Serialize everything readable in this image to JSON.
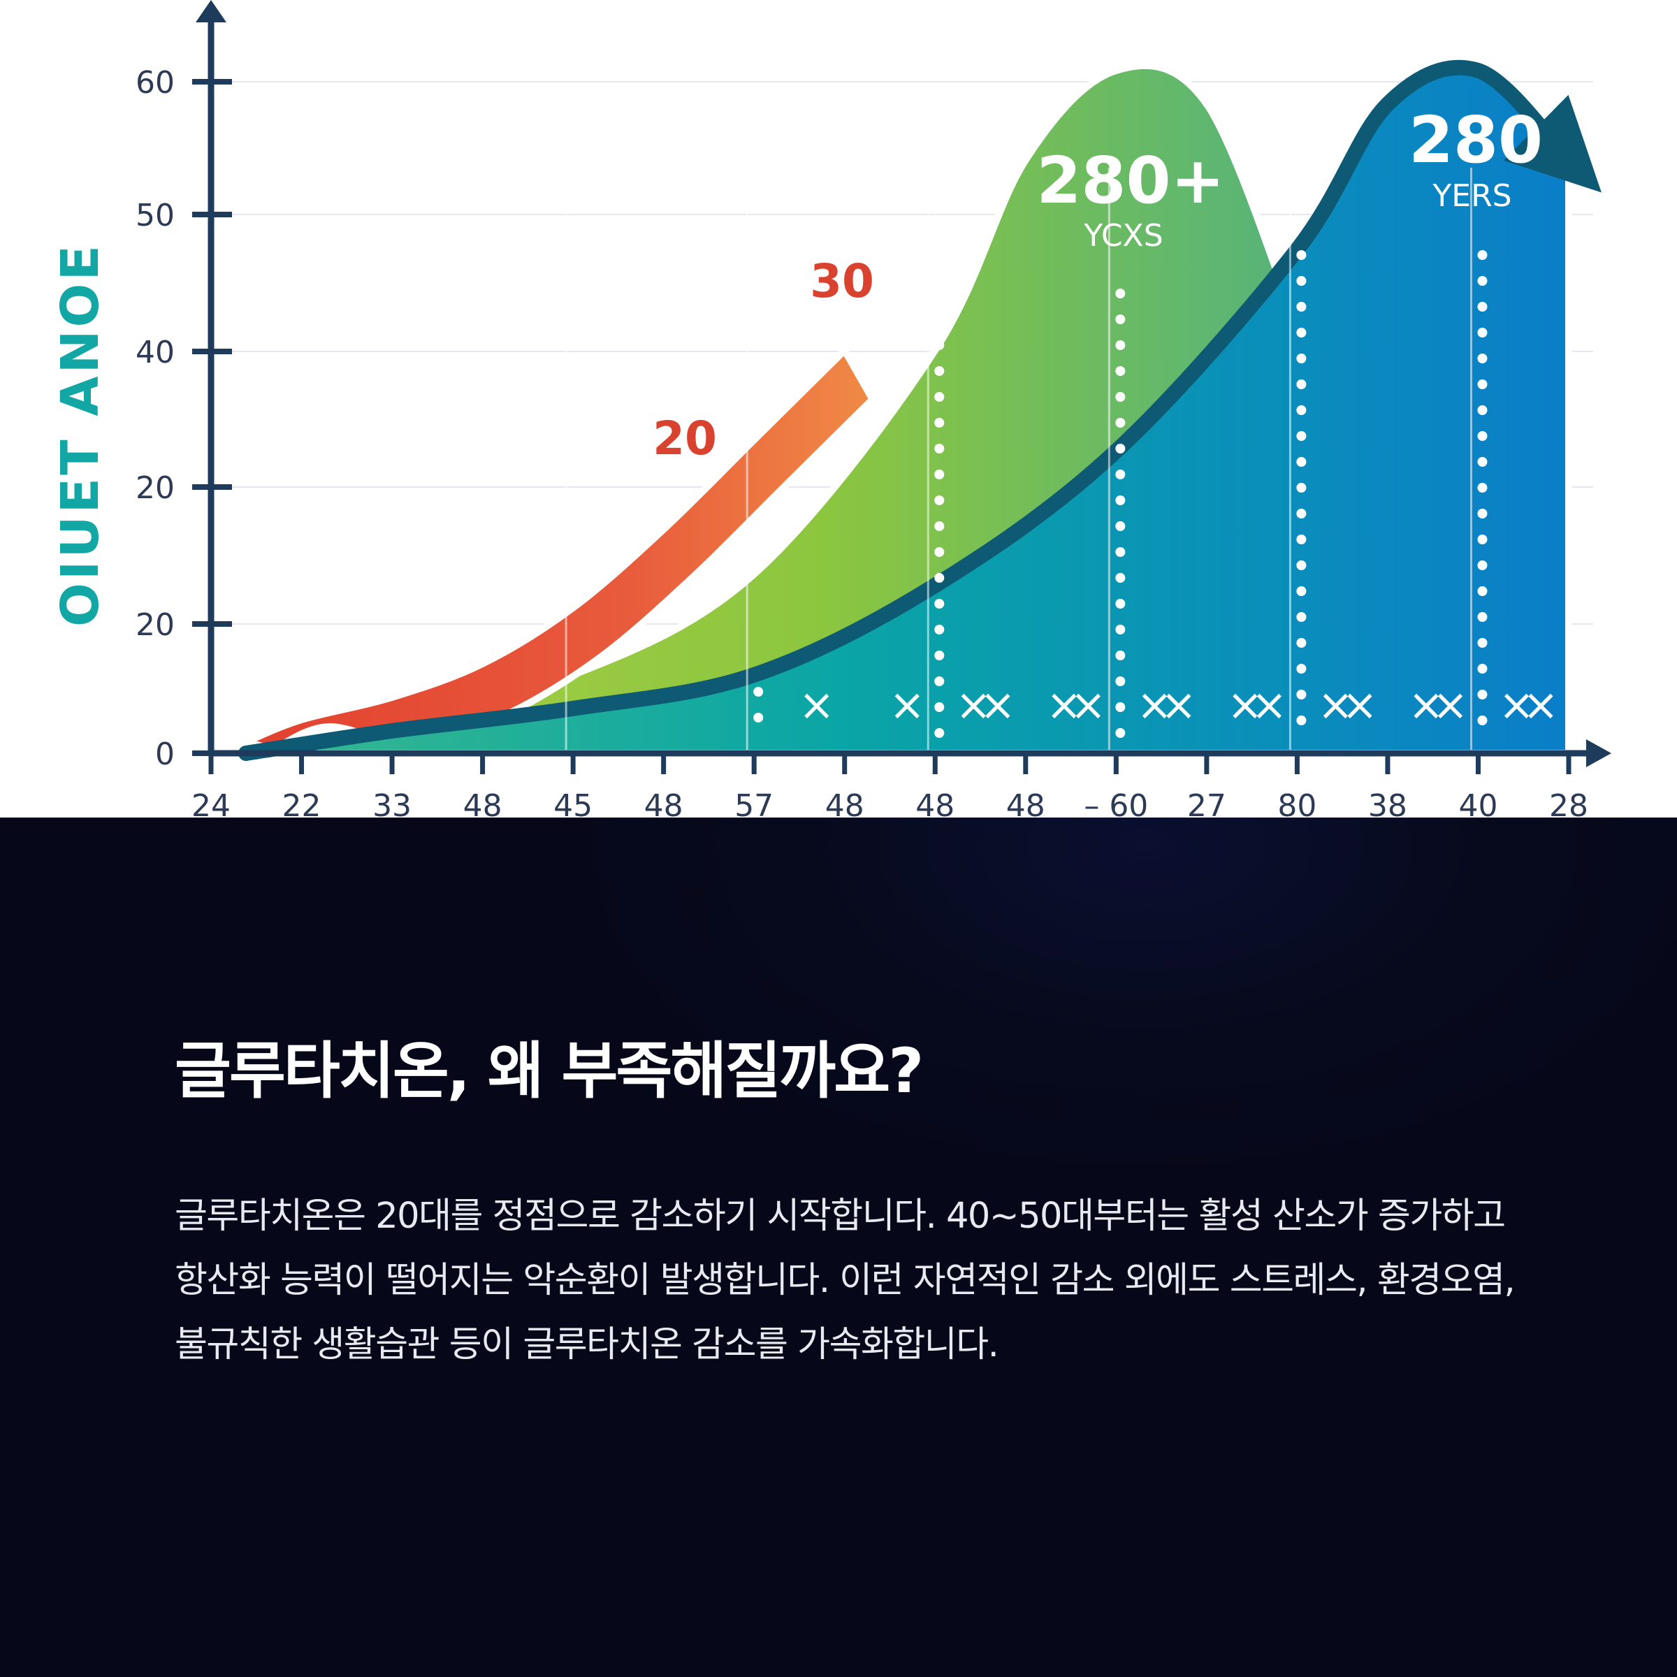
{
  "chart_data": {
    "type": "area",
    "ylabel": "OIUET ANOE",
    "y_ticks": [
      "60",
      "50",
      "40",
      "20",
      "20",
      "0"
    ],
    "x_ticks": [
      "24",
      "22",
      "33",
      "48",
      "45",
      "48",
      "57",
      "48",
      "48",
      "48",
      "– 60",
      "27",
      "80",
      "38",
      "40",
      "28"
    ],
    "grid": true,
    "annotations": [
      {
        "text": "20",
        "color": "#d9422f"
      },
      {
        "text": "30",
        "color": "#d9422f"
      },
      {
        "text": "280+",
        "sub": "YCXS",
        "color": "#ffffff"
      },
      {
        "text": "280",
        "sub": "YERS",
        "color": "#ffffff"
      }
    ],
    "series": [
      {
        "color": "#e8523a",
        "tick_index": [
          0,
          1,
          2,
          3,
          4,
          5,
          6,
          7
        ],
        "values": [
          1,
          3,
          5,
          8,
          13,
          20,
          28,
          36
        ]
      },
      {
        "color": "#8cc63f",
        "tick_index": [
          0,
          2,
          4,
          6,
          8,
          9,
          10,
          11,
          12
        ],
        "values": [
          1,
          3,
          7,
          16,
          36,
          53,
          61,
          58,
          38
        ]
      },
      {
        "color": "#0a9fb0",
        "tick_index": [
          0,
          2,
          4,
          6,
          8,
          10,
          12,
          13,
          14,
          15
        ],
        "values": [
          0,
          2,
          4,
          7,
          15,
          27,
          45,
          58,
          61,
          53
        ]
      }
    ],
    "markers": "×"
  },
  "text": {
    "heading": "글루타치온, 왜 부족해질까요?",
    "body": "글루타치온은 20대를 정점으로 감소하기 시작합니다. 40~50대부터는 활성 산소가 증가하고 항산화 능력이 떨어지는 악순환이 발생합니다. 이런 자연적인 감소 외에도 스트레스, 환경오염, 불규칙한 생활습관 등이 글루타치온 감소를 가속화합니다."
  }
}
